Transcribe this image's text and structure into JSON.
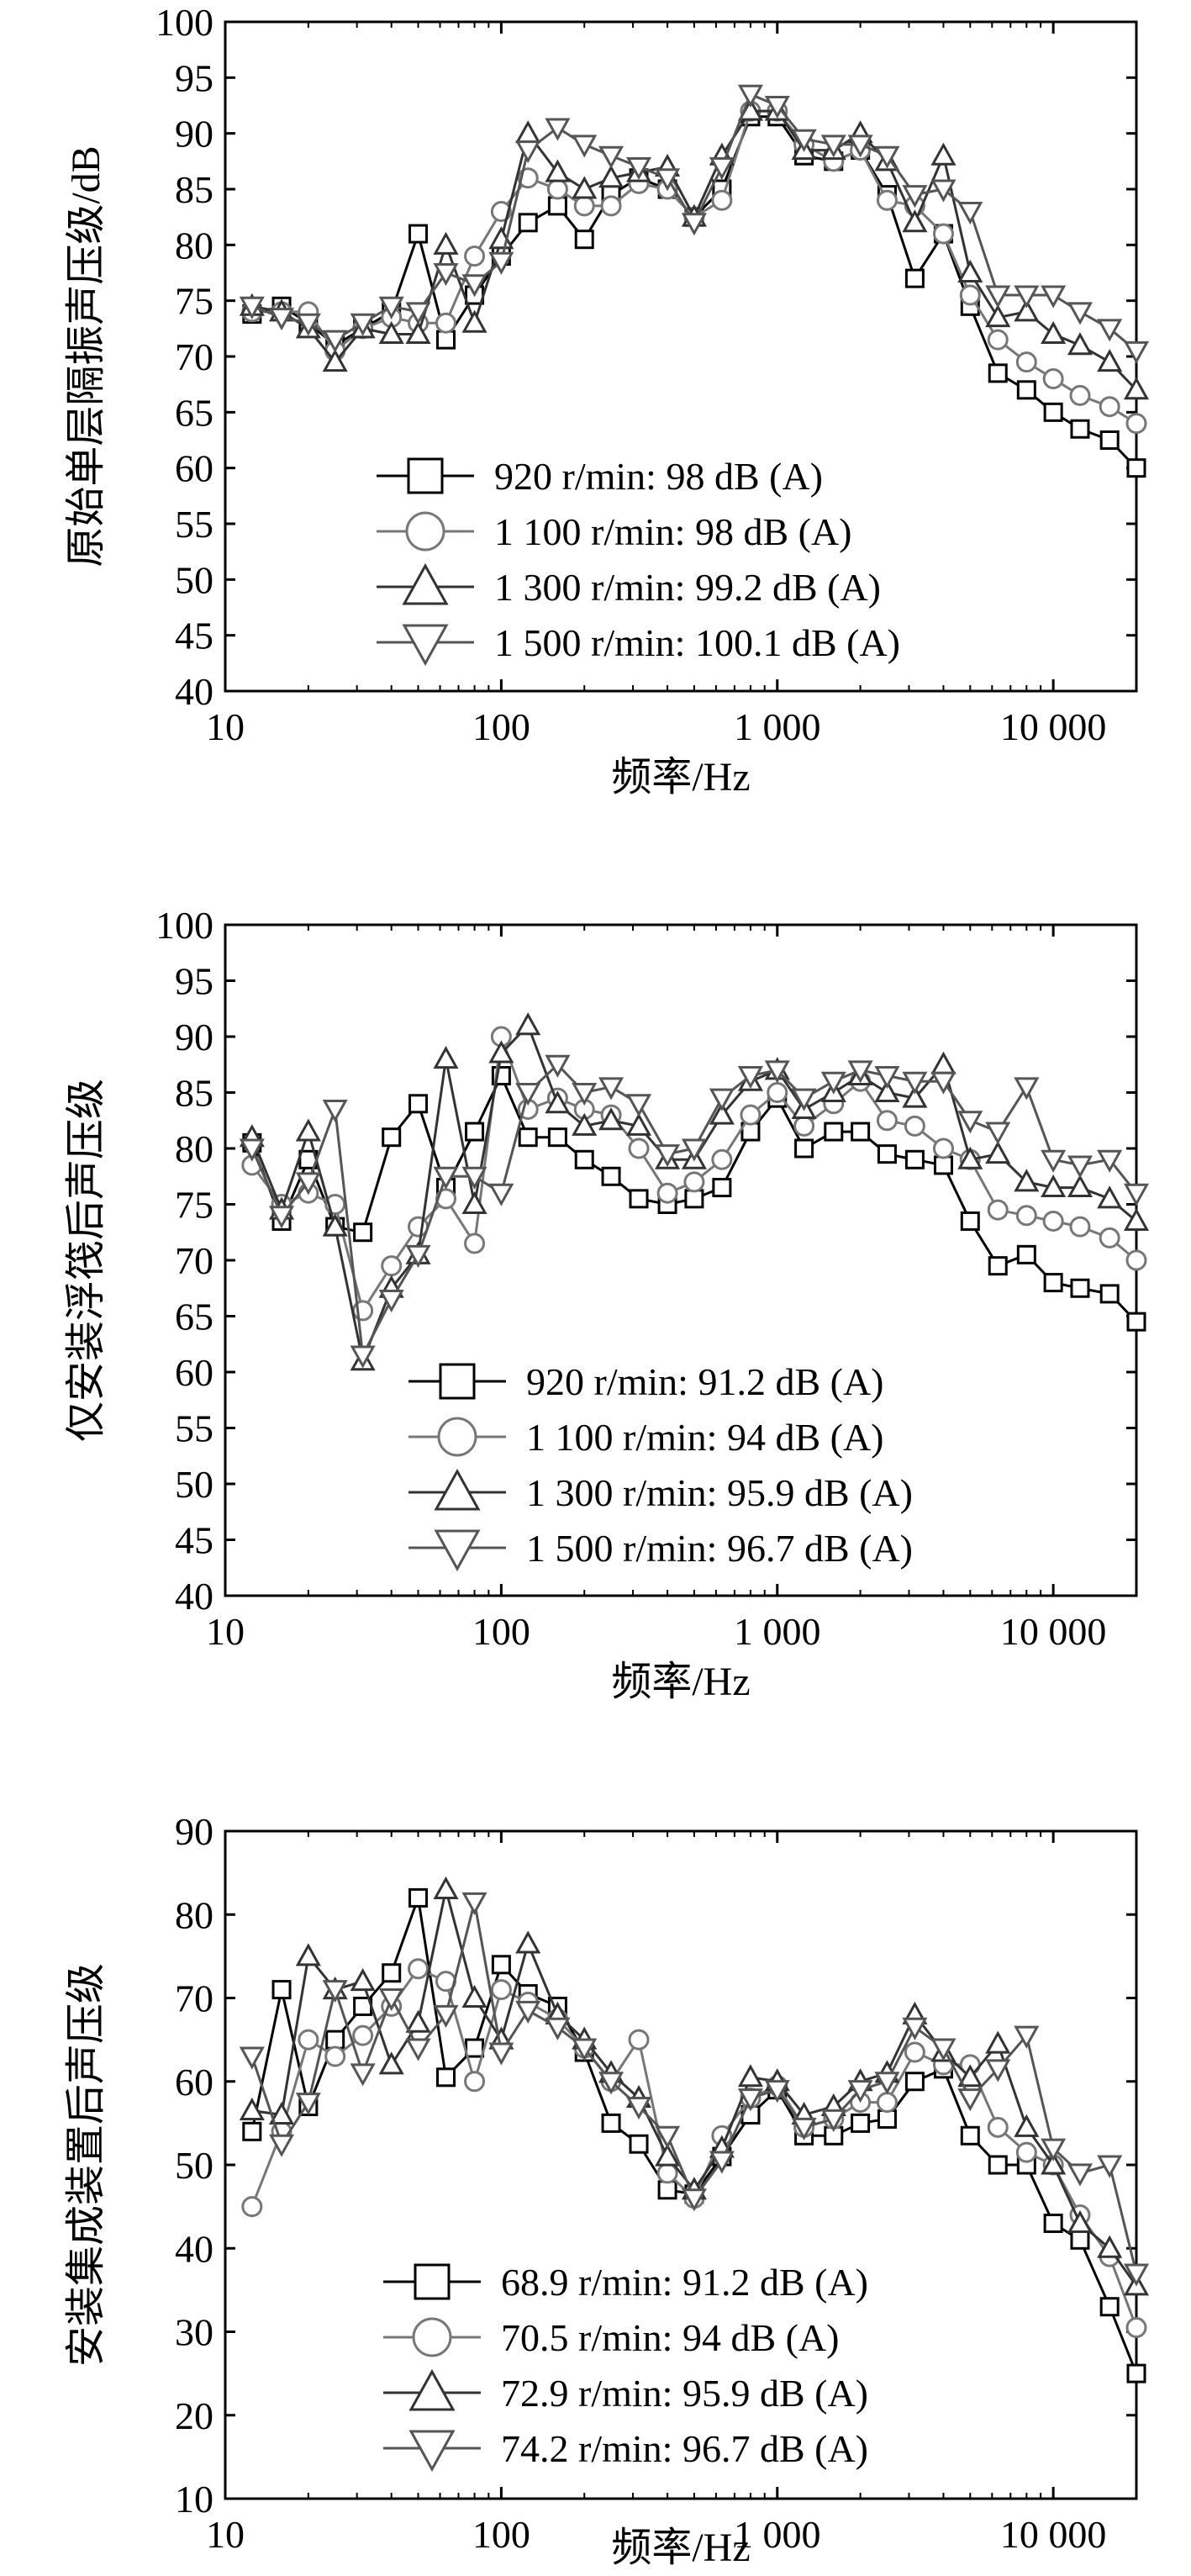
{
  "chart_data": [
    {
      "type": "line",
      "xscale": "log",
      "xlabel": "频率/Hz",
      "ylabel": "原始单层隔振声压级/dB",
      "xlim": [
        10,
        20000
      ],
      "ylim": [
        40,
        100
      ],
      "yticks": [
        40,
        45,
        50,
        55,
        60,
        65,
        70,
        75,
        80,
        85,
        90,
        95,
        100
      ],
      "xticks": [
        {
          "value": 10,
          "label": "10"
        },
        {
          "value": 100,
          "label": "100"
        },
        {
          "value": 1000,
          "label": "1 000"
        },
        {
          "value": 10000,
          "label": "10 000"
        }
      ],
      "legend_position": "bottom-left",
      "x": [
        12.5,
        16,
        20,
        25,
        31.5,
        40,
        50,
        63,
        80,
        100,
        125,
        160,
        200,
        250,
        315,
        400,
        500,
        630,
        800,
        1000,
        1250,
        1600,
        2000,
        2500,
        3150,
        4000,
        5000,
        6300,
        8000,
        10000,
        12500,
        16000,
        20000
      ],
      "series": [
        {
          "name": "920 r/min: 98 dB (A)",
          "marker": "square",
          "color": "#000000",
          "values": [
            73.8,
            74.5,
            73.0,
            71.0,
            72.5,
            74.0,
            81.0,
            71.5,
            75.5,
            79.0,
            82.0,
            83.5,
            80.5,
            84.5,
            86.0,
            85.0,
            82.5,
            85.0,
            91.5,
            91.5,
            88.0,
            87.5,
            88.5,
            84.5,
            77.0,
            81.0,
            74.5,
            68.5,
            67.0,
            65.0,
            63.5,
            62.5,
            60.0
          ]
        },
        {
          "name": "1 100 r/min: 98 dB (A)",
          "marker": "circle",
          "color": "#777777",
          "values": [
            74.0,
            74.0,
            74.0,
            70.5,
            72.5,
            73.5,
            73.0,
            73.0,
            79.0,
            83.0,
            86.0,
            85.0,
            83.5,
            83.5,
            85.5,
            85.0,
            82.5,
            84.0,
            92.0,
            92.0,
            89.0,
            87.5,
            88.5,
            84.0,
            83.5,
            81.0,
            75.5,
            71.5,
            69.5,
            68.0,
            66.5,
            65.5,
            64.0
          ]
        },
        {
          "name": "1 300 r/min: 99.2 dB (A)",
          "marker": "triangle-up",
          "color": "#333333",
          "values": [
            74.5,
            74.0,
            72.5,
            69.5,
            72.5,
            72.0,
            72.0,
            80.0,
            73.0,
            80.5,
            90.0,
            86.5,
            85.0,
            86.0,
            86.5,
            87.0,
            82.5,
            88.0,
            92.0,
            92.0,
            88.5,
            88.5,
            90.0,
            87.5,
            82.0,
            88.0,
            77.5,
            73.5,
            74.0,
            72.0,
            71.0,
            69.5,
            67.0
          ]
        },
        {
          "name": "1 500 r/min: 100.1 dB (A)",
          "marker": "triangle-down",
          "color": "#555555",
          "values": [
            74.5,
            73.5,
            73.0,
            71.5,
            73.0,
            74.5,
            74.0,
            77.5,
            76.5,
            78.5,
            88.5,
            90.5,
            89.0,
            88.0,
            87.0,
            86.0,
            82.0,
            87.0,
            93.5,
            92.5,
            89.5,
            89.0,
            89.0,
            88.0,
            84.5,
            85.0,
            83.0,
            75.5,
            75.5,
            75.5,
            74.0,
            72.5,
            70.5
          ]
        }
      ]
    },
    {
      "type": "line",
      "xscale": "log",
      "xlabel": "频率/Hz",
      "ylabel": "仅安装浮筏后声压级",
      "xlim": [
        10,
        20000
      ],
      "ylim": [
        40,
        100
      ],
      "yticks": [
        40,
        45,
        50,
        55,
        60,
        65,
        70,
        75,
        80,
        85,
        90,
        95,
        100
      ],
      "xticks": [
        {
          "value": 10,
          "label": "10"
        },
        {
          "value": 100,
          "label": "100"
        },
        {
          "value": 1000,
          "label": "1 000"
        },
        {
          "value": 10000,
          "label": "10 000"
        }
      ],
      "legend_position": "bottom-left",
      "x": [
        12.5,
        16,
        20,
        25,
        31.5,
        40,
        50,
        63,
        80,
        100,
        125,
        160,
        200,
        250,
        315,
        400,
        500,
        630,
        800,
        1000,
        1250,
        1600,
        2000,
        2500,
        3150,
        4000,
        5000,
        6300,
        8000,
        10000,
        12500,
        16000,
        20000
      ],
      "series": [
        {
          "name": "920 r/min: 91.2 dB (A)",
          "marker": "square",
          "color": "#000000",
          "values": [
            80.5,
            73.5,
            79.0,
            73.0,
            72.5,
            81.0,
            84.0,
            76.5,
            81.5,
            86.5,
            81.0,
            81.0,
            79.0,
            77.5,
            75.5,
            75.0,
            75.5,
            76.5,
            81.5,
            84.5,
            80.0,
            81.5,
            81.5,
            79.5,
            79.0,
            78.5,
            73.5,
            69.5,
            70.5,
            68.0,
            67.5,
            67.0,
            64.5
          ]
        },
        {
          "name": "1 100 r/min: 94 dB (A)",
          "marker": "circle",
          "color": "#777777",
          "values": [
            78.5,
            75.0,
            76.0,
            75.0,
            65.5,
            69.5,
            73.0,
            75.5,
            71.5,
            90.0,
            83.5,
            84.5,
            83.5,
            83.0,
            80.0,
            76.0,
            77.0,
            79.0,
            83.0,
            85.0,
            82.0,
            84.0,
            86.0,
            82.5,
            82.0,
            80.0,
            79.0,
            74.5,
            74.0,
            73.5,
            73.0,
            72.0,
            70.0
          ]
        },
        {
          "name": "1 300 r/min: 95.9 dB (A)",
          "marker": "triangle-up",
          "color": "#333333",
          "values": [
            81.0,
            74.5,
            81.5,
            73.0,
            61.0,
            67.5,
            70.5,
            88.0,
            75.0,
            88.5,
            91.0,
            84.0,
            82.0,
            82.5,
            82.0,
            79.0,
            79.0,
            83.0,
            86.0,
            87.0,
            83.5,
            85.0,
            86.5,
            85.0,
            84.5,
            87.5,
            79.0,
            79.5,
            77.0,
            76.5,
            76.5,
            75.5,
            73.5
          ]
        },
        {
          "name": "1 500 r/min: 96.7 dB (A)",
          "marker": "triangle-down",
          "color": "#555555",
          "values": [
            80.0,
            74.0,
            77.0,
            83.5,
            61.5,
            66.5,
            70.5,
            77.5,
            77.5,
            76.0,
            85.0,
            87.5,
            85.0,
            85.5,
            84.0,
            79.5,
            80.0,
            84.5,
            86.5,
            87.0,
            84.5,
            86.0,
            87.0,
            86.5,
            86.0,
            86.0,
            82.5,
            81.5,
            85.5,
            79.0,
            78.5,
            79.0,
            76.0
          ]
        }
      ]
    },
    {
      "type": "line",
      "xscale": "log",
      "xlabel": "频率/Hz",
      "ylabel": "安装集成装置后声压级",
      "xlim": [
        10,
        20000
      ],
      "ylim": [
        10,
        90
      ],
      "yticks": [
        10,
        20,
        30,
        40,
        50,
        60,
        70,
        80,
        90
      ],
      "xticks": [
        {
          "value": 10,
          "label": "10"
        },
        {
          "value": 100,
          "label": "100"
        },
        {
          "value": 1000,
          "label": "1 000"
        },
        {
          "value": 10000,
          "label": "10 000"
        }
      ],
      "legend_position": "bottom-left",
      "x": [
        12.5,
        16,
        20,
        25,
        31.5,
        40,
        50,
        63,
        80,
        100,
        125,
        160,
        200,
        250,
        315,
        400,
        500,
        630,
        800,
        1000,
        1250,
        1600,
        2000,
        2500,
        3150,
        4000,
        5000,
        6300,
        8000,
        10000,
        12500,
        16000,
        20000
      ],
      "series": [
        {
          "name": "68.9 r/min: 91.2 dB (A)",
          "marker": "square",
          "color": "#000000",
          "values": [
            54.0,
            71.0,
            57.0,
            65.0,
            69.0,
            73.0,
            82.0,
            60.5,
            64.0,
            74.0,
            70.5,
            69.0,
            63.5,
            55.0,
            52.5,
            47.0,
            46.5,
            51.0,
            56.0,
            59.0,
            53.5,
            53.5,
            55.0,
            55.5,
            60.0,
            61.5,
            53.5,
            50.0,
            50.0,
            43.0,
            41.0,
            33.0,
            25.0
          ]
        },
        {
          "name": "70.5 r/min: 94 dB (A)",
          "marker": "circle",
          "color": "#777777",
          "values": [
            45.0,
            54.0,
            65.0,
            63.0,
            65.5,
            69.0,
            73.5,
            72.0,
            60.0,
            71.0,
            69.5,
            67.5,
            64.0,
            60.0,
            65.0,
            49.0,
            46.0,
            53.5,
            58.0,
            59.5,
            54.5,
            55.5,
            57.5,
            57.5,
            63.5,
            62.0,
            62.0,
            54.5,
            51.5,
            50.0,
            44.0,
            39.0,
            30.5
          ]
        },
        {
          "name": "72.9 r/min: 95.9 dB (A)",
          "marker": "triangle-up",
          "color": "#333333",
          "values": [
            56.5,
            56.0,
            75.0,
            71.0,
            72.0,
            62.0,
            67.0,
            83.0,
            70.0,
            65.0,
            76.5,
            68.0,
            65.0,
            61.0,
            58.0,
            51.0,
            47.0,
            52.0,
            60.5,
            60.0,
            56.0,
            57.0,
            60.0,
            61.0,
            68.0,
            63.5,
            60.5,
            64.5,
            54.5,
            50.0,
            43.0,
            40.0,
            35.5
          ]
        },
        {
          "name": "74.2 r/min: 96.7 dB (A)",
          "marker": "triangle-down",
          "color": "#555555",
          "values": [
            63.0,
            52.5,
            57.5,
            71.0,
            61.0,
            70.0,
            64.0,
            68.0,
            81.5,
            63.5,
            68.5,
            66.5,
            64.0,
            60.0,
            57.0,
            53.5,
            46.0,
            50.5,
            58.0,
            59.0,
            54.5,
            55.5,
            59.0,
            60.0,
            66.5,
            64.0,
            58.0,
            61.5,
            65.5,
            52.0,
            49.0,
            50.0,
            37.0
          ]
        }
      ]
    }
  ]
}
